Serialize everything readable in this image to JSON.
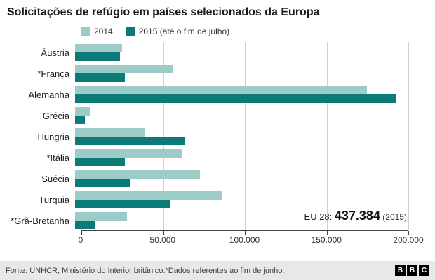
{
  "title": "Solicitações de refúgio em países selecionados da Europa",
  "legend": [
    {
      "label": "2014",
      "color": "#9dcbc8"
    },
    {
      "label": "2015 (até o fim de julho)",
      "color": "#0b7b78"
    }
  ],
  "chart_data": {
    "type": "bar",
    "orientation": "horizontal",
    "title": "Solicitações de refúgio em países selecionados da Europa",
    "categories": [
      "Áustria",
      "*França",
      "Alemanha",
      "Grécia",
      "Hungria",
      "*Itália",
      "Suécia",
      "Turquia",
      "*Grã-Bretanha"
    ],
    "series": [
      {
        "name": "2014",
        "color": "#9dcbc8",
        "values": [
          28000,
          59000,
          175000,
          9000,
          42000,
          64000,
          75000,
          88000,
          31000
        ]
      },
      {
        "name": "2015 (até o fim de julho)",
        "color": "#0b7b78",
        "values": [
          27000,
          30000,
          193000,
          6000,
          66000,
          30000,
          33000,
          57000,
          12000
        ]
      }
    ],
    "xlim": [
      0,
      200000
    ],
    "xticks": [
      {
        "value": 0,
        "label": "0"
      },
      {
        "value": 50000,
        "label": "50.000"
      },
      {
        "value": 100000,
        "label": "100.000"
      },
      {
        "value": 150000,
        "label": "150.000"
      },
      {
        "value": 200000,
        "label": "200.000"
      }
    ],
    "grid": "vertical",
    "legend_position": "top",
    "annotation": {
      "prefix": "EU 28: ",
      "value": "437.384",
      "suffix": " (2015)"
    }
  },
  "footer": {
    "source": "Fonte: UNHCR, Ministério do Interior britânico.*Dados referentes ao fim de junho.",
    "logo_letters": [
      "B",
      "B",
      "C"
    ]
  }
}
